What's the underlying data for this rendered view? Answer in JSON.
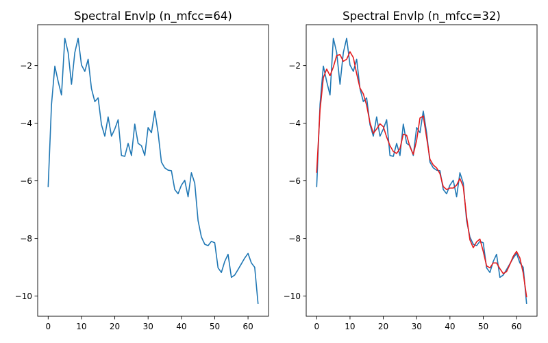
{
  "chart_data": [
    {
      "type": "line",
      "title": "Spectral Envlp (n_mfcc=64)",
      "xlabel": "",
      "ylabel": "",
      "xlim": [
        -3.15,
        66.15
      ],
      "ylim": [
        -10.7,
        -0.58
      ],
      "xticks": [
        0,
        10,
        20,
        30,
        40,
        50,
        60
      ],
      "yticks": [
        -10,
        -8,
        -6,
        -4,
        -2
      ],
      "grid": false,
      "series": [
        {
          "color": "#1f77b4",
          "x": [
            0,
            1,
            2,
            3,
            4,
            5,
            6,
            7,
            8,
            9,
            10,
            11,
            12,
            13,
            14,
            15,
            16,
            17,
            18,
            19,
            20,
            21,
            22,
            23,
            24,
            25,
            26,
            27,
            28,
            29,
            30,
            31,
            32,
            33,
            34,
            35,
            36,
            37,
            38,
            39,
            40,
            41,
            42,
            43,
            44,
            45,
            46,
            47,
            48,
            49,
            50,
            51,
            52,
            53,
            54,
            55,
            56,
            57,
            58,
            59,
            60,
            61,
            62,
            63
          ],
          "y": [
            -6.2,
            -3.35,
            -2.02,
            -2.55,
            -3.02,
            -1.05,
            -1.55,
            -2.65,
            -1.55,
            -1.05,
            -1.98,
            -2.2,
            -1.78,
            -2.8,
            -3.25,
            -3.12,
            -4.05,
            -4.45,
            -3.78,
            -4.45,
            -4.2,
            -3.88,
            -5.12,
            -5.15,
            -4.7,
            -5.12,
            -4.03,
            -4.7,
            -4.78,
            -5.12,
            -4.15,
            -4.33,
            -3.58,
            -4.33,
            -5.35,
            -5.55,
            -5.63,
            -5.65,
            -6.3,
            -6.45,
            -6.15,
            -5.98,
            -6.55,
            -5.72,
            -6.08,
            -7.38,
            -7.95,
            -8.2,
            -8.25,
            -8.1,
            -8.15,
            -9.02,
            -9.18,
            -8.8,
            -8.55,
            -9.35,
            -9.27,
            -9.08,
            -8.88,
            -8.68,
            -8.52,
            -8.85,
            -9.0,
            -10.25
          ]
        }
      ]
    },
    {
      "type": "line",
      "title": "Spectral Envlp (n_mfcc=32)",
      "xlabel": "",
      "ylabel": "",
      "xlim": [
        -3.15,
        66.15
      ],
      "ylim": [
        -10.7,
        -0.58
      ],
      "xticks": [
        0,
        10,
        20,
        30,
        40,
        50,
        60
      ],
      "yticks": [
        -10,
        -8,
        -6,
        -4,
        -2
      ],
      "grid": false,
      "series": [
        {
          "color": "#1f77b4",
          "x": [
            0,
            1,
            2,
            3,
            4,
            5,
            6,
            7,
            8,
            9,
            10,
            11,
            12,
            13,
            14,
            15,
            16,
            17,
            18,
            19,
            20,
            21,
            22,
            23,
            24,
            25,
            26,
            27,
            28,
            29,
            30,
            31,
            32,
            33,
            34,
            35,
            36,
            37,
            38,
            39,
            40,
            41,
            42,
            43,
            44,
            45,
            46,
            47,
            48,
            49,
            50,
            51,
            52,
            53,
            54,
            55,
            56,
            57,
            58,
            59,
            60,
            61,
            62,
            63
          ],
          "y": [
            -6.2,
            -3.35,
            -2.02,
            -2.55,
            -3.02,
            -1.05,
            -1.55,
            -2.65,
            -1.55,
            -1.05,
            -1.98,
            -2.2,
            -1.78,
            -2.8,
            -3.25,
            -3.12,
            -4.05,
            -4.45,
            -3.78,
            -4.45,
            -4.2,
            -3.88,
            -5.12,
            -5.15,
            -4.7,
            -5.12,
            -4.03,
            -4.7,
            -4.78,
            -5.12,
            -4.15,
            -4.33,
            -3.58,
            -4.33,
            -5.35,
            -5.55,
            -5.63,
            -5.65,
            -6.3,
            -6.45,
            -6.15,
            -5.98,
            -6.55,
            -5.72,
            -6.08,
            -7.38,
            -7.95,
            -8.2,
            -8.25,
            -8.1,
            -8.15,
            -9.02,
            -9.18,
            -8.8,
            -8.55,
            -9.35,
            -9.27,
            -9.08,
            -8.88,
            -8.68,
            -8.52,
            -8.85,
            -9.0,
            -10.25
          ]
        },
        {
          "color": "#e41a1c",
          "x": [
            0,
            1,
            2,
            3,
            4,
            5,
            6,
            7,
            8,
            9,
            10,
            11,
            12,
            13,
            14,
            15,
            16,
            17,
            18,
            19,
            20,
            21,
            22,
            23,
            24,
            25,
            26,
            27,
            28,
            29,
            30,
            31,
            32,
            33,
            34,
            35,
            36,
            37,
            38,
            39,
            40,
            41,
            42,
            43,
            44,
            45,
            46,
            47,
            48,
            49,
            50,
            51,
            52,
            53,
            54,
            55,
            56,
            57,
            58,
            59,
            60,
            61,
            62,
            63
          ],
          "y": [
            -5.7,
            -3.55,
            -2.42,
            -2.12,
            -2.35,
            -2.05,
            -1.65,
            -1.62,
            -1.85,
            -1.78,
            -1.52,
            -1.72,
            -2.28,
            -2.78,
            -2.98,
            -3.38,
            -3.98,
            -4.35,
            -4.2,
            -4.02,
            -4.12,
            -4.48,
            -4.78,
            -4.98,
            -5.05,
            -4.88,
            -4.38,
            -4.42,
            -4.82,
            -5.08,
            -4.6,
            -3.82,
            -3.75,
            -4.5,
            -5.25,
            -5.45,
            -5.55,
            -5.75,
            -6.2,
            -6.3,
            -6.25,
            -6.25,
            -6.15,
            -5.92,
            -6.2,
            -7.25,
            -8.05,
            -8.32,
            -8.12,
            -8.02,
            -8.45,
            -8.95,
            -9.02,
            -8.85,
            -8.85,
            -9.05,
            -9.22,
            -9.15,
            -8.9,
            -8.62,
            -8.45,
            -8.68,
            -9.2,
            -10.02
          ]
        }
      ]
    }
  ]
}
